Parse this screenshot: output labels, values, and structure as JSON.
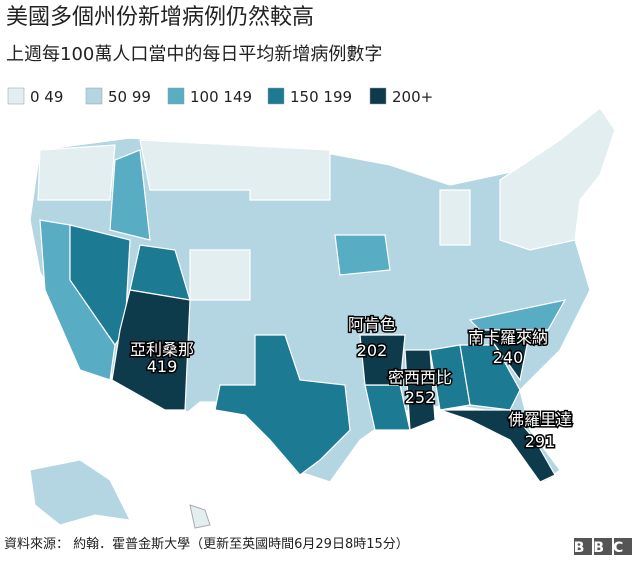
{
  "header": {
    "title": "美國多個州份新增病例仍然較高",
    "subtitle": "上週每100萬人口當中的每日平均新增病例數字"
  },
  "legend": {
    "items": [
      {
        "label": "0 49",
        "color": "#e3eef1"
      },
      {
        "label": "50 99",
        "color": "#b3d6e2"
      },
      {
        "label": "100 149",
        "color": "#58acc3"
      },
      {
        "label": "150 199",
        "color": "#1c7b93"
      },
      {
        "label": "200+",
        "color": "#0d3b4b"
      }
    ]
  },
  "states": [
    {
      "name": "亞利桑那",
      "value": 419
    },
    {
      "name": "阿肯色",
      "value": 202
    },
    {
      "name": "密西西比",
      "value": 252
    },
    {
      "name": "南卡羅來納",
      "value": 240
    },
    {
      "name": "佛羅里達",
      "value": 291
    }
  ],
  "footer": {
    "source": "資料來源： 約翰．霍普金斯大學（更新至英國時間6月29日8時15分）",
    "logo": "BBC"
  }
}
